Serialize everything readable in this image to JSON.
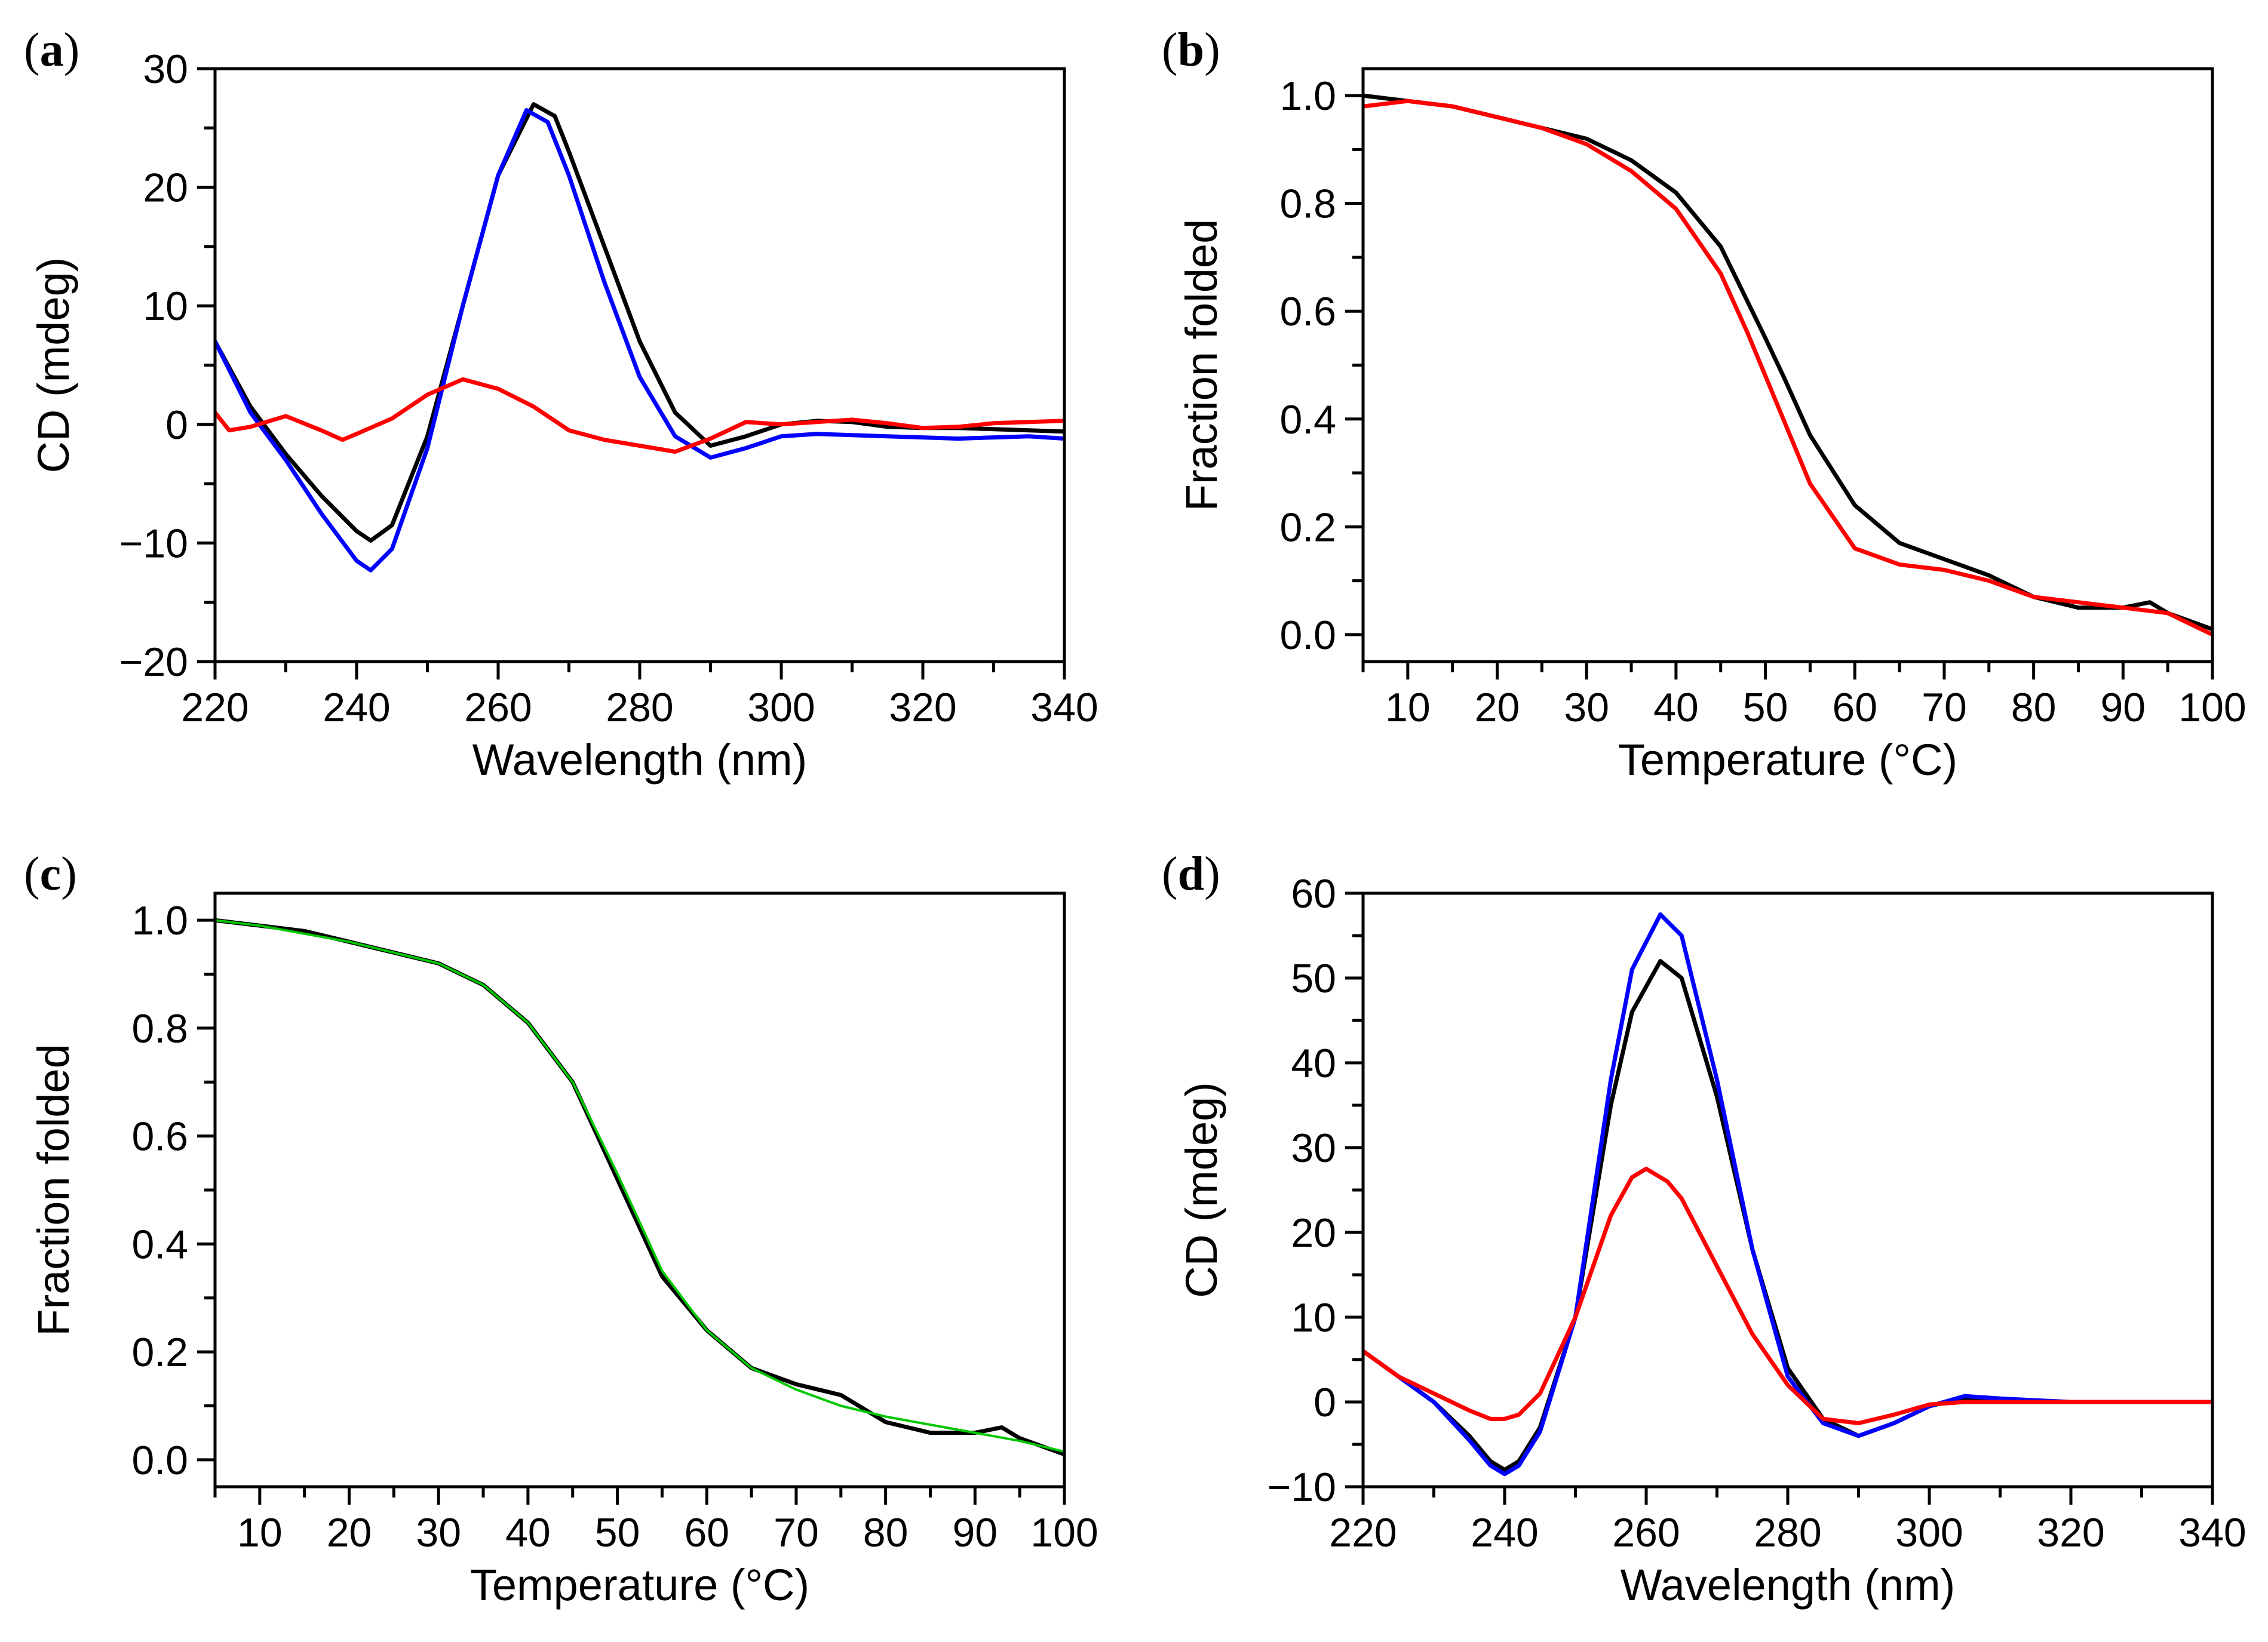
{
  "chart_data": [
    {
      "panel": "(a)",
      "panel_prefix": "(",
      "panel_letter": "a",
      "panel_suffix": ")",
      "type": "line",
      "xlabel": "Wavelength (nm)",
      "ylabel": "CD (mdeg)",
      "xlim": [
        220,
        340
      ],
      "ylim": [
        -20,
        30
      ],
      "xticks": [
        220,
        240,
        260,
        280,
        300,
        320,
        340
      ],
      "xtick_labels": [
        "220",
        "240",
        "260",
        "280",
        "300",
        "320",
        "340"
      ],
      "yticks": [
        -20,
        -10,
        0,
        10,
        20,
        30
      ],
      "ytick_labels": [
        "−20",
        "−10",
        "0",
        "10",
        "20",
        "30"
      ],
      "series": [
        {
          "name": "black",
          "color": "#000000",
          "x": [
            220,
            225,
            230,
            235,
            240,
            242,
            245,
            250,
            255,
            260,
            265,
            268,
            270,
            275,
            280,
            285,
            290,
            295,
            300,
            305,
            310,
            315,
            320,
            325,
            330,
            335,
            340
          ],
          "y": [
            7,
            1.5,
            -2.5,
            -6,
            -9,
            -9.8,
            -8.5,
            -1,
            10,
            21,
            27,
            26,
            23,
            15,
            7,
            1,
            -1.8,
            -1,
            0,
            0.3,
            0.2,
            -0.2,
            -0.3,
            -0.3,
            -0.4,
            -0.5,
            -0.6
          ]
        },
        {
          "name": "blue",
          "color": "#0000ff",
          "x": [
            220,
            225,
            230,
            235,
            240,
            242,
            245,
            250,
            255,
            260,
            264,
            267,
            270,
            275,
            280,
            285,
            290,
            295,
            300,
            305,
            310,
            315,
            320,
            325,
            330,
            335,
            340
          ],
          "y": [
            7,
            1,
            -3,
            -7.5,
            -11.5,
            -12.3,
            -10.5,
            -2,
            10,
            21,
            26.5,
            25.5,
            21,
            12,
            4,
            -1,
            -2.8,
            -2,
            -1,
            -0.8,
            -0.9,
            -1,
            -1.1,
            -1.2,
            -1.1,
            -1,
            -1.2
          ]
        },
        {
          "name": "red",
          "color": "#ff0000",
          "x": [
            220,
            222,
            225,
            230,
            235,
            238,
            240,
            245,
            250,
            255,
            260,
            265,
            270,
            275,
            280,
            285,
            290,
            295,
            300,
            305,
            310,
            315,
            320,
            325,
            330,
            335,
            340
          ],
          "y": [
            1,
            -0.5,
            -0.2,
            0.7,
            -0.5,
            -1.3,
            -0.8,
            0.5,
            2.5,
            3.8,
            3,
            1.5,
            -0.5,
            -1.3,
            -1.8,
            -2.3,
            -1.2,
            0.2,
            0,
            0.2,
            0.4,
            0.1,
            -0.3,
            -0.2,
            0.1,
            0.2,
            0.3
          ]
        }
      ]
    },
    {
      "panel": "(b)",
      "panel_prefix": "(",
      "panel_letter": "b",
      "panel_suffix": ")",
      "type": "line",
      "xlabel": "Temperature (°C)",
      "ylabel": "Fraction folded",
      "xlim": [
        5,
        100
      ],
      "ylim": [
        -0.05,
        1.05
      ],
      "xticks": [
        10,
        20,
        30,
        40,
        50,
        60,
        70,
        80,
        90,
        100
      ],
      "xtick_labels": [
        "10",
        "20",
        "30",
        "40",
        "50",
        "60",
        "70",
        "80",
        "90",
        "100"
      ],
      "yticks": [
        0.0,
        0.2,
        0.4,
        0.6,
        0.8,
        1.0
      ],
      "ytick_labels": [
        "0.0",
        "0.2",
        "0.4",
        "0.6",
        "0.8",
        "1.0"
      ],
      "series": [
        {
          "name": "black",
          "color": "#000000",
          "x": [
            5,
            10,
            15,
            20,
            25,
            30,
            35,
            40,
            45,
            50,
            52,
            55,
            60,
            65,
            70,
            75,
            80,
            85,
            90,
            93,
            95,
            100
          ],
          "y": [
            1.0,
            0.99,
            0.98,
            0.96,
            0.94,
            0.92,
            0.88,
            0.82,
            0.72,
            0.55,
            0.48,
            0.37,
            0.24,
            0.17,
            0.14,
            0.11,
            0.07,
            0.05,
            0.05,
            0.06,
            0.04,
            0.01
          ]
        },
        {
          "name": "red",
          "color": "#ff0000",
          "x": [
            5,
            10,
            15,
            20,
            25,
            30,
            35,
            40,
            45,
            48,
            50,
            55,
            60,
            65,
            70,
            75,
            80,
            85,
            90,
            95,
            100
          ],
          "y": [
            0.98,
            0.99,
            0.98,
            0.96,
            0.94,
            0.91,
            0.86,
            0.79,
            0.67,
            0.56,
            0.48,
            0.28,
            0.16,
            0.13,
            0.12,
            0.1,
            0.07,
            0.06,
            0.05,
            0.04,
            0.0
          ]
        }
      ]
    },
    {
      "panel": "(c)",
      "panel_prefix": "(",
      "panel_letter": "c",
      "panel_suffix": ")",
      "type": "line",
      "xlabel": "Temperature (°C)",
      "ylabel": "Fraction folded",
      "xlim": [
        5,
        100
      ],
      "ylim": [
        -0.05,
        1.05
      ],
      "xticks": [
        10,
        20,
        30,
        40,
        50,
        60,
        70,
        80,
        90,
        100
      ],
      "xtick_labels": [
        "10",
        "20",
        "30",
        "40",
        "50",
        "60",
        "70",
        "80",
        "90",
        "100"
      ],
      "yticks": [
        0.0,
        0.2,
        0.4,
        0.6,
        0.8,
        1.0
      ],
      "ytick_labels": [
        "0.0",
        "0.2",
        "0.4",
        "0.6",
        "0.8",
        "1.0"
      ],
      "series": [
        {
          "name": "black",
          "color": "#000000",
          "x": [
            5,
            10,
            15,
            20,
            25,
            30,
            35,
            40,
            45,
            50,
            55,
            60,
            65,
            70,
            75,
            80,
            85,
            90,
            93,
            95,
            100
          ],
          "y": [
            1.0,
            0.99,
            0.98,
            0.96,
            0.94,
            0.92,
            0.88,
            0.81,
            0.7,
            0.52,
            0.34,
            0.24,
            0.17,
            0.14,
            0.12,
            0.07,
            0.05,
            0.05,
            0.06,
            0.04,
            0.01
          ]
        },
        {
          "name": "green",
          "color": "#00c800",
          "x": [
            5,
            10,
            15,
            20,
            25,
            30,
            35,
            40,
            45,
            50,
            55,
            60,
            65,
            70,
            75,
            80,
            85,
            90,
            95,
            100
          ],
          "y": [
            1.0,
            0.99,
            0.975,
            0.96,
            0.94,
            0.92,
            0.88,
            0.81,
            0.7,
            0.53,
            0.35,
            0.24,
            0.17,
            0.13,
            0.1,
            0.08,
            0.065,
            0.05,
            0.035,
            0.015
          ]
        }
      ]
    },
    {
      "panel": "(d)",
      "panel_prefix": "(",
      "panel_letter": "d",
      "panel_suffix": ")",
      "type": "line",
      "xlabel": "Wavelength (nm)",
      "ylabel": "CD (mdeg)",
      "xlim": [
        220,
        340
      ],
      "ylim": [
        -10,
        60
      ],
      "xticks": [
        220,
        240,
        260,
        280,
        300,
        320,
        340
      ],
      "xtick_labels": [
        "220",
        "240",
        "260",
        "280",
        "300",
        "320",
        "340"
      ],
      "yticks": [
        -10,
        0,
        10,
        20,
        30,
        40,
        50,
        60
      ],
      "ytick_labels": [
        "−10",
        "0",
        "10",
        "20",
        "30",
        "40",
        "50",
        "60"
      ],
      "series": [
        {
          "name": "black",
          "color": "#000000",
          "x": [
            220,
            225,
            230,
            235,
            238,
            240,
            242,
            245,
            250,
            255,
            258,
            262,
            265,
            270,
            275,
            280,
            285,
            290,
            295,
            300,
            305,
            310,
            320,
            330,
            340
          ],
          "y": [
            6,
            3,
            0,
            -4,
            -7,
            -8,
            -7,
            -3,
            10,
            35,
            46,
            52,
            50,
            36,
            18,
            4,
            -2,
            -4,
            -2.5,
            -0.5,
            0.5,
            0.2,
            0,
            0,
            0
          ]
        },
        {
          "name": "blue",
          "color": "#0000ff",
          "x": [
            220,
            225,
            230,
            235,
            238,
            240,
            242,
            245,
            250,
            255,
            258,
            262,
            265,
            270,
            275,
            280,
            285,
            290,
            295,
            300,
            305,
            310,
            320,
            330,
            340
          ],
          "y": [
            6,
            3,
            0,
            -4.5,
            -7.5,
            -8.5,
            -7.5,
            -3.5,
            10,
            38,
            51,
            57.5,
            55,
            38,
            18,
            3,
            -2.5,
            -4,
            -2.5,
            -0.5,
            0.7,
            0.4,
            0,
            0,
            0
          ]
        },
        {
          "name": "red",
          "color": "#ff0000",
          "x": [
            220,
            225,
            230,
            235,
            238,
            240,
            242,
            245,
            250,
            255,
            258,
            260,
            263,
            265,
            270,
            275,
            280,
            285,
            290,
            295,
            300,
            305,
            310,
            320,
            330,
            340
          ],
          "y": [
            6,
            3,
            1,
            -1,
            -2,
            -2,
            -1.5,
            1,
            10,
            22,
            26.5,
            27.5,
            26,
            24,
            16,
            8,
            2,
            -2,
            -2.5,
            -1.5,
            -0.3,
            0,
            0,
            0,
            0,
            0
          ]
        }
      ]
    }
  ]
}
